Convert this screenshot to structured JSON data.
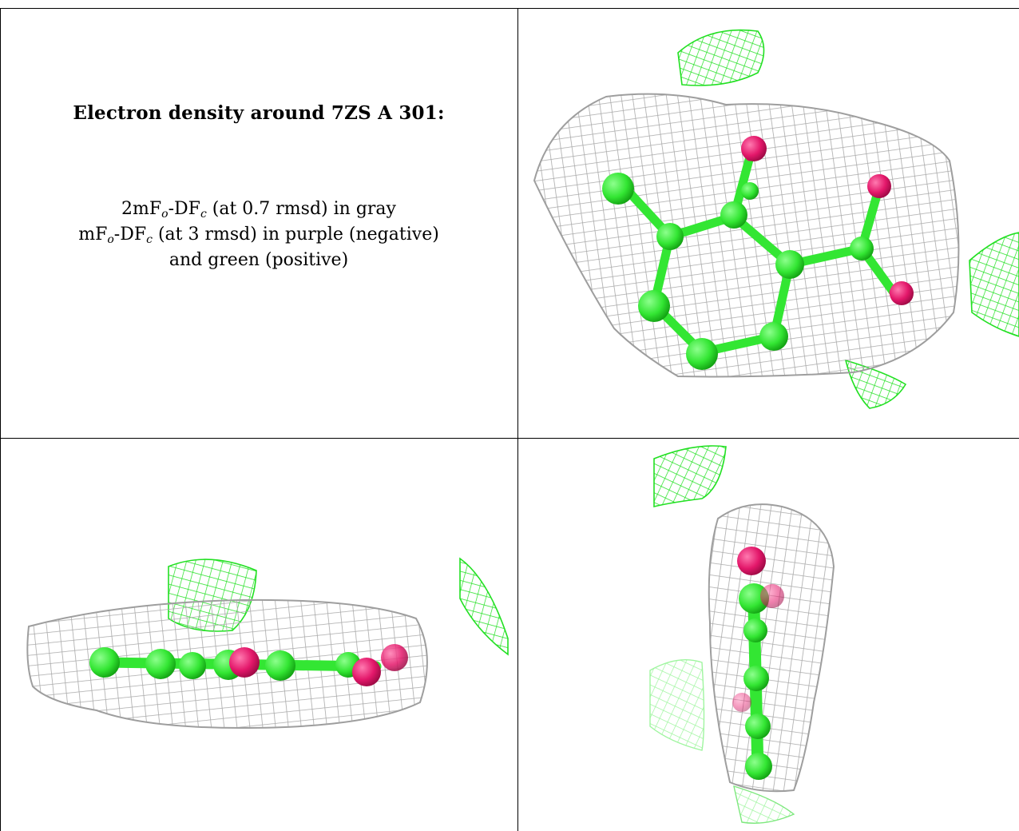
{
  "title": "Electron density around 7ZS A 301:",
  "legend": {
    "line1": {
      "pre": "2mF",
      "sub1": "o",
      "mid": "-DF",
      "sub2": "c",
      "post": " (at 0.7 rmsd) in gray"
    },
    "line2": {
      "pre": "mF",
      "sub1": "o",
      "mid": "-DF",
      "sub2": "c",
      "post": " (at 3 rmsd) in purple (negative)"
    },
    "line3": "and green (positive)"
  },
  "colors": {
    "mesh_gray": "#a9a9a9",
    "mesh_green": "#22e022",
    "carbon": "#3df03d",
    "oxygen": "#e8176a",
    "border": "#000000"
  },
  "views": [
    {
      "id": "top-right",
      "description_icon": "molecule-face-view"
    },
    {
      "id": "bottom-left",
      "description_icon": "molecule-edge-view"
    },
    {
      "id": "bottom-right",
      "description_icon": "molecule-end-view"
    }
  ]
}
